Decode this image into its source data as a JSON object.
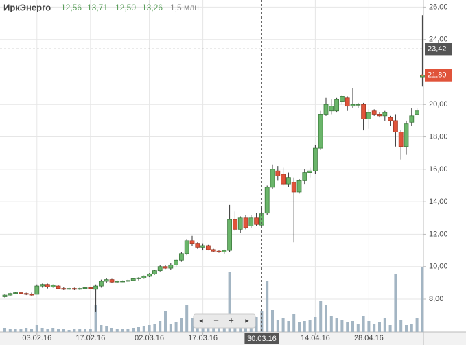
{
  "chart_data": {
    "type": "candlestick",
    "header": {
      "name": "ИркЭнерго",
      "open": "12,56",
      "high": "13,71",
      "low": "12,50",
      "close": "13,26",
      "volume": "1,5 млн."
    },
    "categories": [
      null,
      null,
      null,
      null,
      null,
      null,
      "03.02.16",
      null,
      null,
      null,
      null,
      null,
      null,
      null,
      null,
      null,
      "17.02.16",
      null,
      null,
      null,
      null,
      null,
      null,
      null,
      null,
      null,
      null,
      "02.03.16",
      null,
      null,
      null,
      null,
      null,
      null,
      null,
      null,
      null,
      "17.03.16",
      null,
      null,
      null,
      null,
      null,
      null,
      null,
      null,
      null,
      null,
      "30.03.16",
      null,
      null,
      null,
      null,
      null,
      null,
      null,
      null,
      null,
      "14.04.16",
      null,
      null,
      null,
      null,
      null,
      null,
      null,
      null,
      null,
      "28.04.16",
      null,
      null,
      null,
      null,
      null,
      null,
      null,
      null,
      null,
      null
    ],
    "open": [
      8.15,
      8.25,
      8.35,
      8.4,
      8.35,
      8.3,
      8.3,
      8.8,
      8.9,
      8.75,
      8.8,
      8.65,
      8.6,
      8.65,
      8.6,
      8.65,
      8.7,
      8.6,
      8.8,
      9.1,
      9.2,
      9.05,
      9.1,
      9.1,
      9.15,
      9.25,
      9.3,
      9.4,
      9.55,
      9.75,
      10.0,
      9.9,
      10.1,
      10.4,
      10.8,
      11.6,
      11.4,
      11.2,
      11.3,
      11.05,
      10.95,
      10.9,
      11.0,
      12.9,
      12.3,
      13.0,
      12.5,
      13.0,
      12.56,
      13.3,
      14.9,
      15.9,
      15.7,
      15.1,
      15.2,
      14.6,
      15.3,
      15.8,
      15.9,
      17.3,
      19.4,
      19.6,
      19.6,
      20.2,
      20.4,
      19.9,
      20.0,
      20.0,
      19.1,
      19.6,
      19.4,
      19.3,
      19.2,
      19.0,
      18.3,
      17.4,
      18.9,
      19.4,
      21.7
    ],
    "high": [
      8.3,
      8.4,
      8.45,
      8.45,
      8.4,
      8.4,
      8.9,
      8.95,
      8.95,
      8.9,
      8.85,
      8.75,
      8.7,
      8.7,
      8.7,
      8.75,
      8.75,
      8.9,
      9.2,
      9.3,
      9.25,
      9.15,
      9.15,
      9.2,
      9.3,
      9.35,
      9.45,
      9.6,
      9.8,
      10.1,
      10.1,
      10.2,
      10.5,
      10.9,
      11.7,
      11.9,
      11.5,
      11.4,
      11.35,
      11.1,
      11.0,
      11.05,
      13.8,
      13.4,
      13.1,
      13.2,
      13.2,
      13.3,
      13.71,
      15.0,
      16.3,
      16.2,
      16.1,
      15.8,
      15.5,
      15.4,
      16.0,
      16.1,
      17.5,
      19.6,
      20.4,
      20.3,
      20.4,
      20.6,
      20.5,
      21.0,
      20.1,
      20.1,
      19.7,
      19.7,
      19.5,
      19.6,
      19.3,
      19.4,
      18.4,
      19.0,
      19.8,
      19.8,
      25.5
    ],
    "low": [
      8.1,
      8.2,
      8.3,
      8.3,
      8.25,
      8.2,
      8.3,
      8.7,
      8.65,
      8.7,
      8.6,
      8.55,
      8.55,
      8.55,
      8.55,
      8.6,
      8.6,
      7.2,
      8.7,
      9.0,
      9.0,
      9.0,
      9.05,
      9.05,
      9.1,
      9.15,
      9.25,
      9.35,
      9.5,
      9.7,
      9.85,
      9.8,
      10.0,
      10.3,
      10.7,
      11.3,
      11.1,
      11.0,
      11.0,
      10.9,
      10.85,
      10.8,
      10.9,
      12.2,
      12.1,
      12.3,
      12.4,
      12.5,
      12.5,
      13.2,
      14.8,
      15.3,
      15.0,
      14.9,
      11.5,
      14.5,
      15.1,
      15.5,
      15.7,
      17.2,
      19.3,
      19.4,
      19.5,
      20.0,
      19.6,
      19.8,
      19.8,
      18.4,
      18.5,
      19.3,
      19.2,
      19.0,
      18.7,
      17.4,
      16.6,
      16.9,
      18.7,
      19.4,
      21.1
    ],
    "close": [
      8.25,
      8.35,
      8.4,
      8.35,
      8.3,
      8.25,
      8.8,
      8.9,
      8.75,
      8.85,
      8.65,
      8.6,
      8.65,
      8.6,
      8.65,
      8.7,
      8.65,
      8.8,
      9.1,
      9.2,
      9.05,
      9.1,
      9.1,
      9.15,
      9.25,
      9.3,
      9.4,
      9.55,
      9.75,
      10.0,
      9.9,
      10.1,
      10.4,
      10.8,
      11.6,
      11.4,
      11.2,
      11.3,
      11.05,
      10.95,
      10.9,
      11.0,
      12.9,
      12.3,
      13.0,
      12.4,
      13.0,
      12.6,
      13.26,
      14.9,
      16.0,
      15.6,
      15.1,
      15.5,
      14.6,
      15.3,
      15.8,
      15.9,
      17.3,
      19.4,
      20.0,
      19.9,
      20.3,
      20.5,
      19.9,
      20.0,
      20.0,
      19.1,
      19.5,
      19.4,
      19.3,
      19.5,
      19.0,
      18.3,
      17.4,
      18.8,
      19.3,
      19.6,
      21.8
    ],
    "volume": [
      0.3,
      0.2,
      0.25,
      0.2,
      0.3,
      0.2,
      0.5,
      0.3,
      0.25,
      0.3,
      0.2,
      0.2,
      0.15,
      0.2,
      0.2,
      0.25,
      0.2,
      2.0,
      0.5,
      0.4,
      0.3,
      0.2,
      0.25,
      0.2,
      0.3,
      0.35,
      0.4,
      0.5,
      0.6,
      0.8,
      1.5,
      0.6,
      0.7,
      1.0,
      2.0,
      1.0,
      0.6,
      0.5,
      0.5,
      0.4,
      0.3,
      0.5,
      4.4,
      1.2,
      0.8,
      1.3,
      0.9,
      1.1,
      1.5,
      3.75,
      1.6,
      0.9,
      1.0,
      0.8,
      1.3,
      0.7,
      0.8,
      0.9,
      1.1,
      2.25,
      2.0,
      1.2,
      1.0,
      0.9,
      0.7,
      0.8,
      0.6,
      1.2,
      0.8,
      0.6,
      0.7,
      1.0,
      0.5,
      4.25,
      0.9,
      0.5,
      0.6,
      1.0,
      4.7
    ],
    "up_color": "#6ab56a",
    "down_color": "#e0533a",
    "volume_color": "#a3b5c3",
    "ylim": [
      5.97,
      26.44
    ],
    "yticks": [
      {
        "value": 8,
        "label": "8,00"
      },
      {
        "value": 10,
        "label": "10,00"
      },
      {
        "value": 12,
        "label": "12,00"
      },
      {
        "value": 14,
        "label": "14,00"
      },
      {
        "value": 16,
        "label": "16,00"
      },
      {
        "value": 18,
        "label": "18,00"
      },
      {
        "value": 20,
        "label": "20,00"
      },
      {
        "value": 24,
        "label": "24,00"
      },
      {
        "value": 26,
        "label": "26,00"
      }
    ],
    "crosshair": {
      "x": "30.03.16",
      "y": {
        "value": 23.42,
        "label": "23,42"
      }
    },
    "last_price": {
      "value": 21.8,
      "label": "21,80"
    },
    "grid": true
  }
}
